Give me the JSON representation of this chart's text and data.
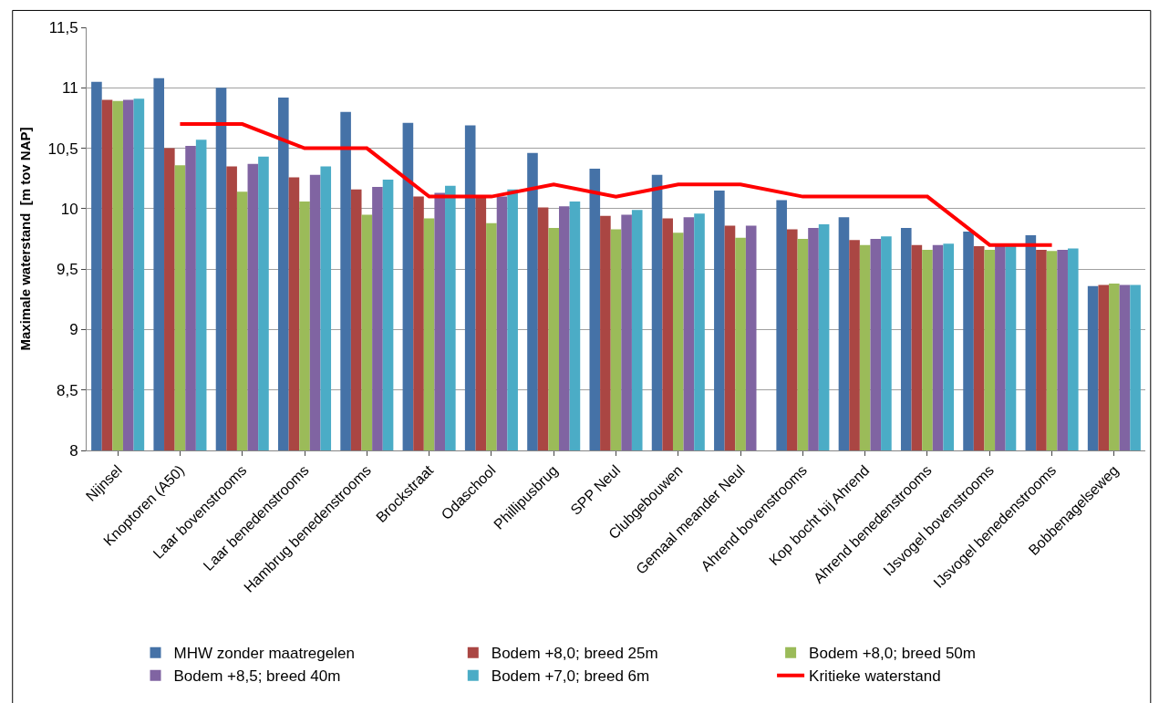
{
  "chart_data": {
    "type": "bar",
    "ylabel": "Maximale waterstand  [m tov NAP]",
    "categories": [
      "Nijnsel",
      "Knoptoren (A50)",
      "Laar bovenstrooms",
      "Laar benedenstrooms",
      "Hambrug benedenstrooms",
      "Brockstraat",
      "Odaschool",
      "Phillipusbrug",
      "SPP Neul",
      "Clubgebouwen",
      "Gemaal meander Neul",
      "Ahrend bovenstrooms",
      "Kop bocht bij Ahrend",
      "Ahrend benedenstrooms",
      "IJsvogel bovenstrooms",
      "IJsvogel benedenstrooms",
      "Bobbenagelseweg"
    ],
    "series": [
      {
        "name": "MHW zonder maatregelen",
        "color": "#4572a7",
        "values": [
          11.05,
          11.08,
          11.0,
          10.92,
          10.8,
          10.71,
          10.69,
          10.46,
          10.33,
          10.28,
          10.15,
          10.07,
          9.93,
          9.84,
          9.81,
          9.78,
          9.36
        ]
      },
      {
        "name": "Bodem +8,0; breed 25m",
        "color": "#aa4643",
        "values": [
          10.9,
          10.5,
          10.35,
          10.26,
          10.16,
          10.1,
          10.1,
          10.01,
          9.94,
          9.92,
          9.86,
          9.83,
          9.74,
          9.7,
          9.69,
          9.66,
          9.37
        ]
      },
      {
        "name": "Bodem +8,0; breed 50m",
        "color": "#9bbb59",
        "values": [
          10.89,
          10.36,
          10.14,
          10.06,
          9.95,
          9.92,
          9.88,
          9.84,
          9.83,
          9.8,
          9.76,
          9.75,
          9.7,
          9.66,
          9.66,
          9.65,
          9.38
        ]
      },
      {
        "name": "Bodem +8,5; breed 40m",
        "color": "#8064a2",
        "values": [
          10.9,
          10.52,
          10.37,
          10.28,
          10.18,
          10.13,
          10.1,
          10.02,
          9.95,
          9.93,
          9.86,
          9.84,
          9.75,
          9.7,
          9.69,
          9.66,
          9.37
        ]
      },
      {
        "name": "Bodem +7,0; breed 6m",
        "color": "#4bacc6",
        "values": [
          10.91,
          10.57,
          10.43,
          10.35,
          10.24,
          10.19,
          10.16,
          10.06,
          9.99,
          9.96,
          null,
          9.87,
          9.77,
          9.71,
          9.7,
          9.67,
          9.37
        ]
      },
      {
        "name": "Kritieke waterstand",
        "type": "line",
        "color": "#ff0000",
        "values": [
          null,
          10.7,
          10.7,
          10.5,
          10.5,
          10.1,
          10.1,
          10.2,
          10.1,
          10.2,
          10.2,
          10.1,
          10.1,
          10.1,
          9.7,
          9.7,
          null
        ]
      }
    ],
    "ylim": [
      8,
      11.5
    ],
    "yticks": [
      8,
      {
        "value": 8.5,
        "label": "8,5"
      },
      9,
      {
        "value": 9.5,
        "label": "9,5"
      },
      10,
      {
        "value": 10.5,
        "label": "10,5"
      },
      11,
      {
        "value": 11.5,
        "label": "11,5"
      }
    ],
    "grid": "y",
    "legend": "bottom",
    "marker": "none",
    "line_style": "solid"
  }
}
